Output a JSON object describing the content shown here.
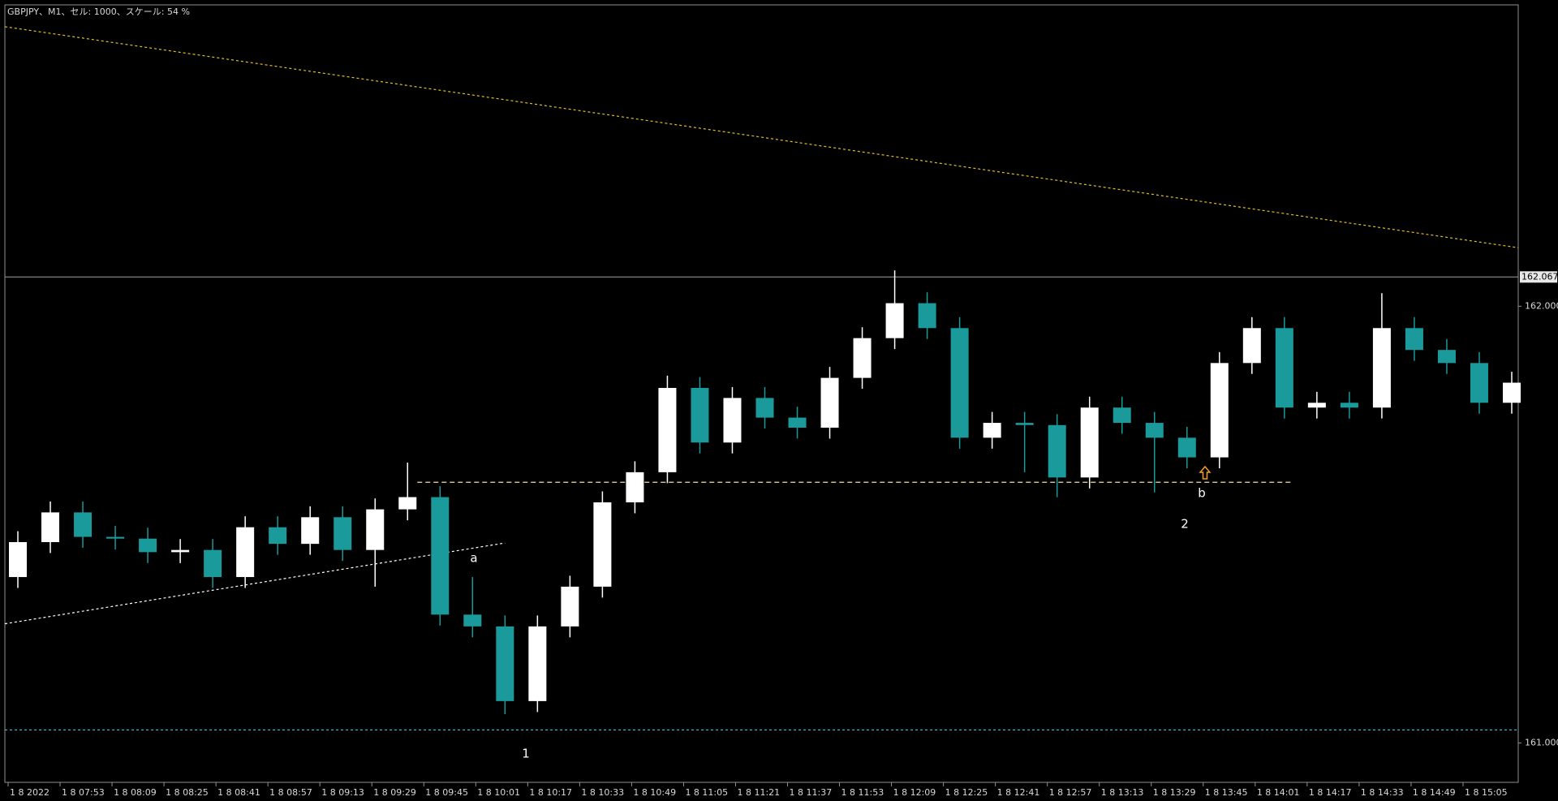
{
  "chart_data": {
    "type": "candlestick",
    "title": "GBPJPY、M1、セル: 1000、スケール: 54 %",
    "x": [
      460,
      470,
      480,
      490,
      500,
      510,
      520,
      530,
      540,
      550,
      560,
      570,
      580,
      590,
      600,
      610,
      620,
      630,
      640,
      650,
      660,
      670,
      680,
      690,
      700,
      710,
      720,
      730,
      740,
      750,
      760,
      770,
      780,
      790,
      800,
      810,
      820,
      830,
      840,
      850,
      860,
      870,
      880,
      890,
      900,
      910,
      920
    ],
    "open": [
      161.38,
      161.46,
      161.528,
      161.472,
      161.468,
      161.437,
      161.442,
      161.38,
      161.494,
      161.456,
      161.517,
      161.442,
      161.535,
      161.563,
      161.294,
      161.267,
      161.096,
      161.267,
      161.358,
      161.551,
      161.62,
      161.813,
      161.688,
      161.79,
      161.745,
      161.722,
      161.836,
      161.927,
      162.007,
      161.95,
      161.699,
      161.733,
      161.728,
      161.608,
      161.768,
      161.733,
      161.699,
      161.654,
      161.87,
      161.95,
      161.768,
      161.779,
      161.768,
      161.95,
      161.9,
      161.87,
      161.779
    ],
    "high": [
      161.485,
      161.553,
      161.553,
      161.497,
      161.493,
      161.467,
      161.467,
      161.519,
      161.519,
      161.542,
      161.542,
      161.56,
      161.642,
      161.588,
      161.38,
      161.292,
      161.292,
      161.383,
      161.576,
      161.645,
      161.841,
      161.838,
      161.815,
      161.815,
      161.77,
      161.861,
      161.952,
      162.082,
      162.032,
      161.975,
      161.758,
      161.758,
      161.753,
      161.793,
      161.793,
      161.758,
      161.724,
      161.895,
      161.975,
      161.975,
      161.804,
      161.804,
      162.03,
      161.975,
      161.925,
      161.895,
      161.85
    ],
    "low": [
      161.355,
      161.435,
      161.447,
      161.443,
      161.412,
      161.412,
      161.355,
      161.355,
      161.431,
      161.431,
      161.417,
      161.358,
      161.51,
      161.269,
      161.242,
      161.066,
      161.071,
      161.242,
      161.333,
      161.526,
      161.595,
      161.663,
      161.663,
      161.72,
      161.697,
      161.697,
      161.811,
      161.902,
      161.925,
      161.674,
      161.674,
      161.62,
      161.563,
      161.583,
      161.708,
      161.574,
      161.629,
      161.629,
      161.845,
      161.743,
      161.743,
      161.743,
      161.743,
      161.875,
      161.845,
      161.754,
      161.754
    ],
    "close": [
      161.46,
      161.528,
      161.472,
      161.468,
      161.437,
      161.442,
      161.38,
      161.494,
      161.456,
      161.517,
      161.442,
      161.535,
      161.563,
      161.294,
      161.267,
      161.096,
      161.267,
      161.358,
      161.551,
      161.62,
      161.813,
      161.688,
      161.79,
      161.745,
      161.722,
      161.836,
      161.927,
      162.007,
      161.95,
      161.699,
      161.733,
      161.728,
      161.608,
      161.768,
      161.733,
      161.699,
      161.654,
      161.87,
      161.95,
      161.768,
      161.779,
      161.768,
      161.95,
      161.9,
      161.87,
      161.779,
      161.825
    ],
    "up_color": "#ffffff",
    "down_color": "#1a9a9a",
    "xlim": [
      456,
      922
    ],
    "ylim": [
      160.91,
      162.69
    ],
    "xticks": [
      {
        "value": 457,
        "label": "1 8 2022"
      },
      {
        "value": 473,
        "label": "1 8 07:53"
      },
      {
        "value": 489,
        "label": "1 8 08:09"
      },
      {
        "value": 505,
        "label": "1 8 08:25"
      },
      {
        "value": 521,
        "label": "1 8 08:41"
      },
      {
        "value": 537,
        "label": "1 8 08:57"
      },
      {
        "value": 553,
        "label": "1 8 09:13"
      },
      {
        "value": 569,
        "label": "1 8 09:29"
      },
      {
        "value": 585,
        "label": "1 8 09:45"
      },
      {
        "value": 601,
        "label": "1 8 10:01"
      },
      {
        "value": 617,
        "label": "1 8 10:17"
      },
      {
        "value": 633,
        "label": "1 8 10:33"
      },
      {
        "value": 649,
        "label": "1 8 10:49"
      },
      {
        "value": 665,
        "label": "1 8 11:05"
      },
      {
        "value": 681,
        "label": "1 8 11:21"
      },
      {
        "value": 697,
        "label": "1 8 11:37"
      },
      {
        "value": 713,
        "label": "1 8 11:53"
      },
      {
        "value": 729,
        "label": "1 8 12:09"
      },
      {
        "value": 745,
        "label": "1 8 12:25"
      },
      {
        "value": 761,
        "label": "1 8 12:41"
      },
      {
        "value": 777,
        "label": "1 8 12:57"
      },
      {
        "value": 793,
        "label": "1 8 13:13"
      },
      {
        "value": 809,
        "label": "1 8 13:29"
      },
      {
        "value": 825,
        "label": "1 8 13:45"
      },
      {
        "value": 841,
        "label": "1 8 14:01"
      },
      {
        "value": 857,
        "label": "1 8 14:17"
      },
      {
        "value": 873,
        "label": "1 8 14:33"
      },
      {
        "value": 889,
        "label": "1 8 14:49"
      },
      {
        "value": 905,
        "label": "1 8 15:05"
      }
    ],
    "yticks": [
      {
        "value": 162,
        "label": "162.000"
      },
      {
        "value": 161,
        "label": "161.000"
      }
    ],
    "bid": 162.067,
    "lines": [
      {
        "x": [
          456,
          922
        ],
        "y": [
          162.64,
          162.134
        ],
        "color": "#e0c020",
        "dash": "dotted"
      },
      {
        "x": [
          456,
          610
        ],
        "y": [
          161.273,
          161.458
        ],
        "color": "#ffffff",
        "dash": "dotted"
      },
      {
        "x": [
          583,
          852
        ],
        "y": [
          161.597,
          161.597
        ],
        "color": "#f0e0a0",
        "dash": "dashed"
      },
      {
        "x": [
          456,
          922
        ],
        "y": [
          161.03,
          161.03
        ],
        "color": "#40c0e0",
        "dash": "dotted"
      }
    ],
    "annotations": [
      "a",
      "1",
      "2",
      "b"
    ]
  }
}
